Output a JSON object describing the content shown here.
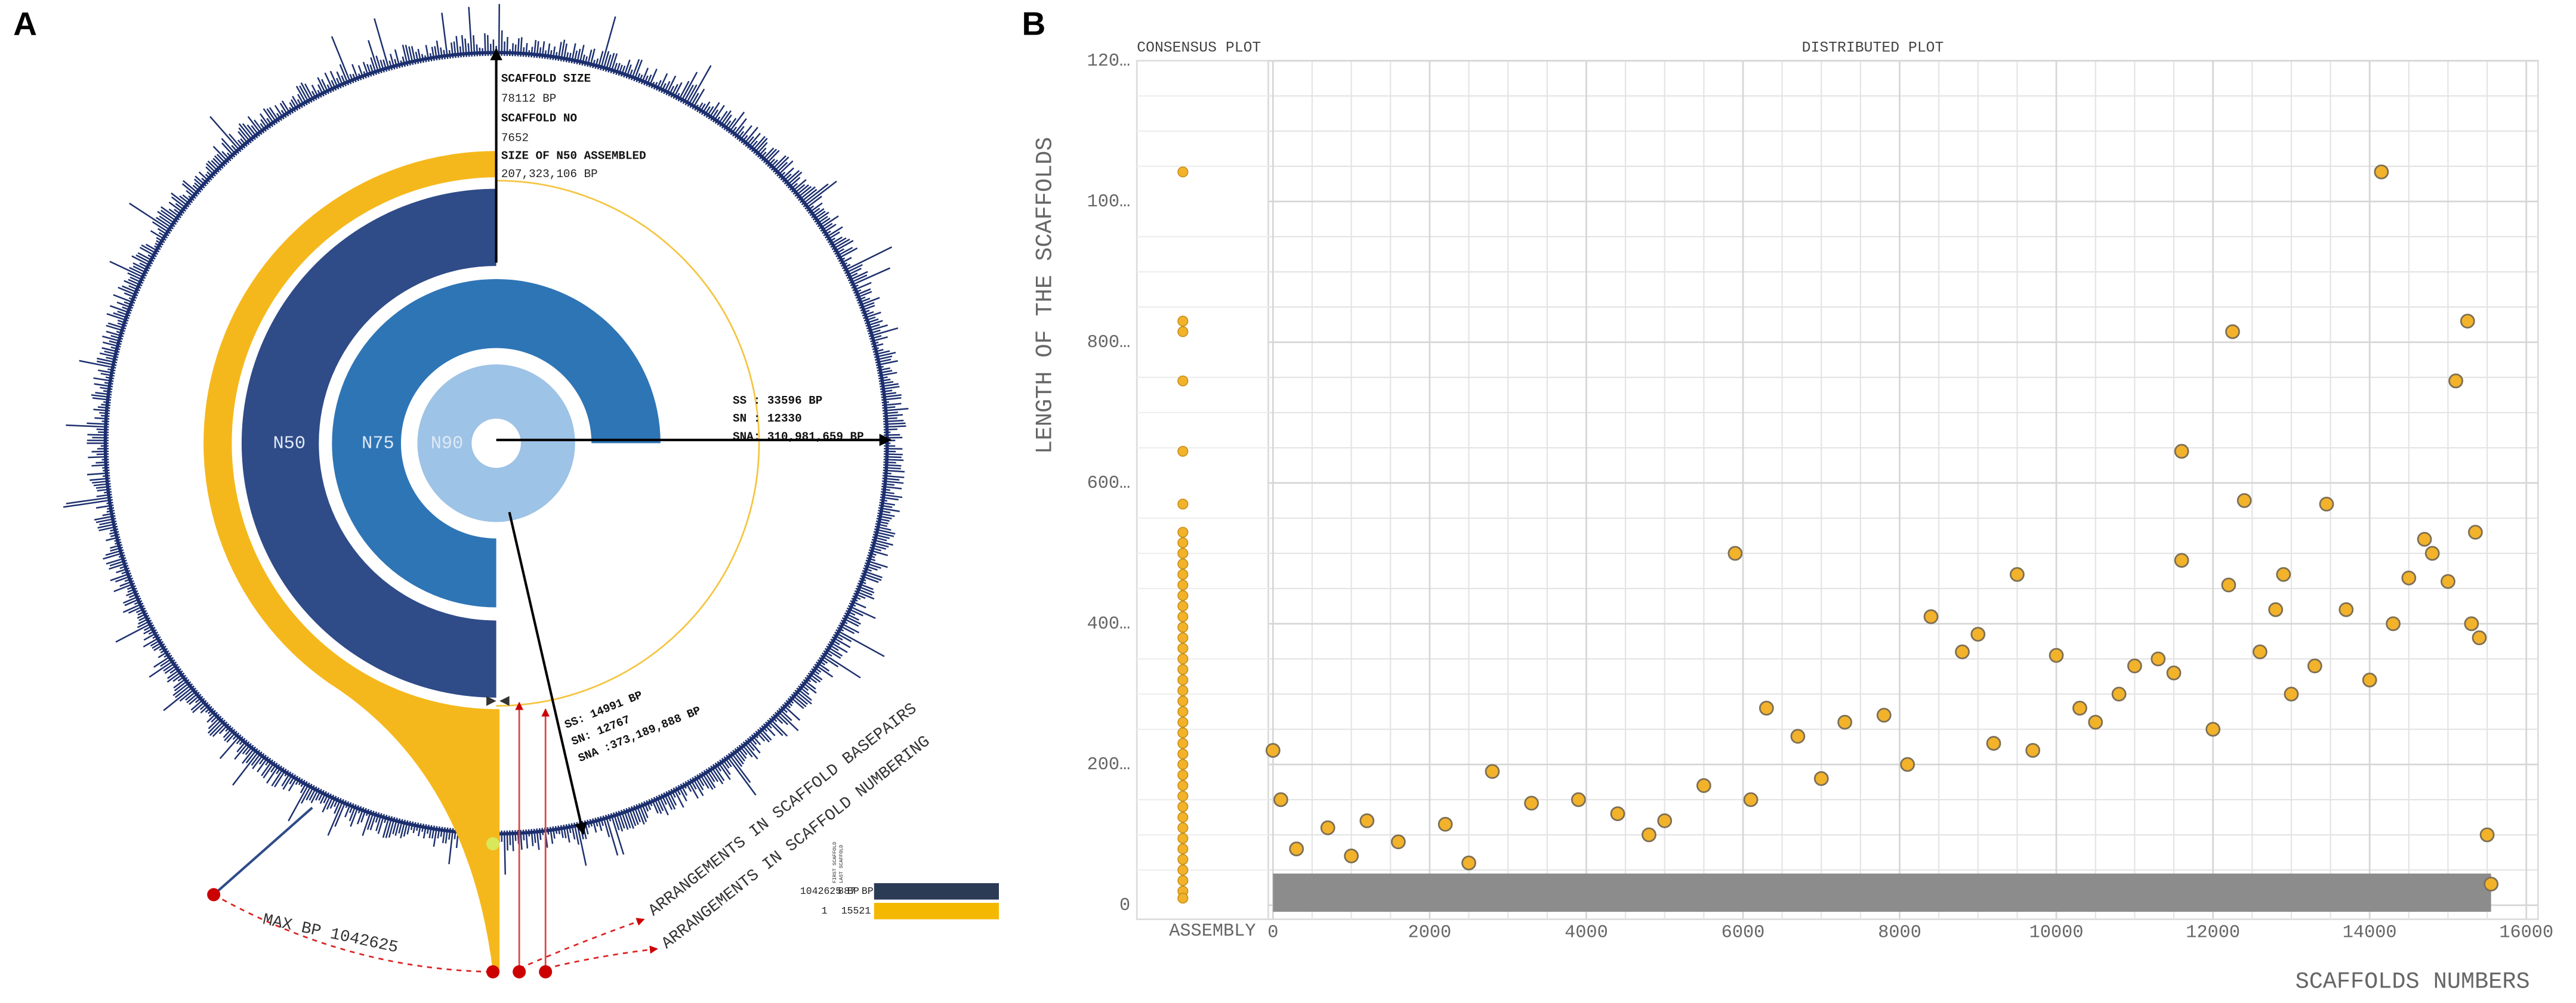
{
  "chart_data": [
    {
      "type": "radial",
      "panel": "A",
      "rings": [
        "N50",
        "N75",
        "N90"
      ],
      "top_annotation": [
        "SCAFFOLD SIZE",
        "78112 BP",
        "SCAFFOLD NO",
        "7652",
        "SIZE OF N50 ASSEMBLED",
        "207,323,106 BP"
      ],
      "n75_annotation": [
        "SS : 33596 BP",
        "SN : 12330",
        "SNA: 310,981,659 BP"
      ],
      "n90_annotation": [
        "SS: 14991 BP",
        "SN: 12767",
        "SNA :373,189,888 BP"
      ],
      "max_label": "MAX BP 1042625",
      "arrangement_labels": [
        "ARRANGEMENTS IN SCAFFOLD BASEPAIRS",
        "ARRANGEMENTS IN SCAFFOLD NUMBERING"
      ],
      "legend": {
        "basepairs": [
          "1042625 BP",
          "887 BP"
        ],
        "numbering": [
          "1",
          "15521"
        ],
        "markers": [
          "FIRST SCAFFOLD",
          "LAST SCAFFOLD"
        ]
      }
    },
    {
      "type": "scatter",
      "panel": "B",
      "titles": [
        "CONSENSUS PLOT",
        "DISTRIBUTED PLOT"
      ],
      "xlabel": "SCAFFOLDS NUMBERS",
      "ylabel": "LENGTH OF THE SCAFFOLDS",
      "color": "#f2b22a",
      "xlim": [
        -60,
        16150
      ],
      "ylim": [
        -20,
        1200
      ],
      "xticks": [
        0,
        2000,
        4000,
        6000,
        8000,
        10000,
        12000,
        14000,
        16000
      ],
      "yticks": [
        0,
        {
          "value": 200,
          "label": "200…"
        },
        {
          "value": 400,
          "label": "400…"
        },
        {
          "value": 600,
          "label": "600…"
        },
        {
          "value": 800,
          "label": "800…"
        },
        {
          "value": 1000,
          "label": "100…"
        },
        {
          "value": 1200,
          "label": "120…"
        }
      ],
      "grid": true,
      "consensus": {
        "category": "ASSEMBLY",
        "values": [
          1042,
          830,
          815,
          745,
          645,
          570,
          530,
          515,
          500,
          485,
          470,
          455,
          440,
          425,
          410,
          395,
          380,
          365,
          350,
          335,
          320,
          305,
          290,
          275,
          260,
          245,
          230,
          215,
          200,
          185,
          170,
          155,
          140,
          125,
          110,
          95,
          80,
          65,
          50,
          35,
          20,
          10
        ]
      },
      "x": [
        0,
        100,
        300,
        700,
        1200,
        1600,
        2200,
        2800,
        3300,
        3900,
        4400,
        5000,
        5500,
        5900,
        6300,
        6700,
        7300,
        7800,
        8400,
        8800,
        9000,
        9500,
        9700,
        10000,
        10500,
        11000,
        11500,
        11600,
        11600,
        12000,
        12200,
        12250,
        12400,
        12600,
        12900,
        13000,
        13450,
        13700,
        14000,
        14150,
        14500,
        14700,
        14800,
        15100,
        15250,
        15300,
        15350,
        15400,
        15500,
        1000,
        2500,
        4800,
        6100,
        7000,
        8100,
        9200,
        10300,
        10800,
        11300,
        12800,
        13300,
        14300,
        15000,
        15550
      ],
      "values": [
        220,
        150,
        80,
        110,
        120,
        90,
        115,
        190,
        145,
        150,
        130,
        120,
        170,
        500,
        280,
        240,
        260,
        270,
        410,
        360,
        385,
        470,
        220,
        355,
        260,
        340,
        330,
        645,
        490,
        250,
        455,
        815,
        575,
        360,
        470,
        300,
        570,
        420,
        320,
        1042,
        465,
        520,
        500,
        745,
        830,
        400,
        530,
        380,
        100,
        70,
        60,
        100,
        150,
        180,
        200,
        230,
        280,
        300,
        350,
        420,
        340,
        400,
        460,
        30
      ]
    }
  ]
}
